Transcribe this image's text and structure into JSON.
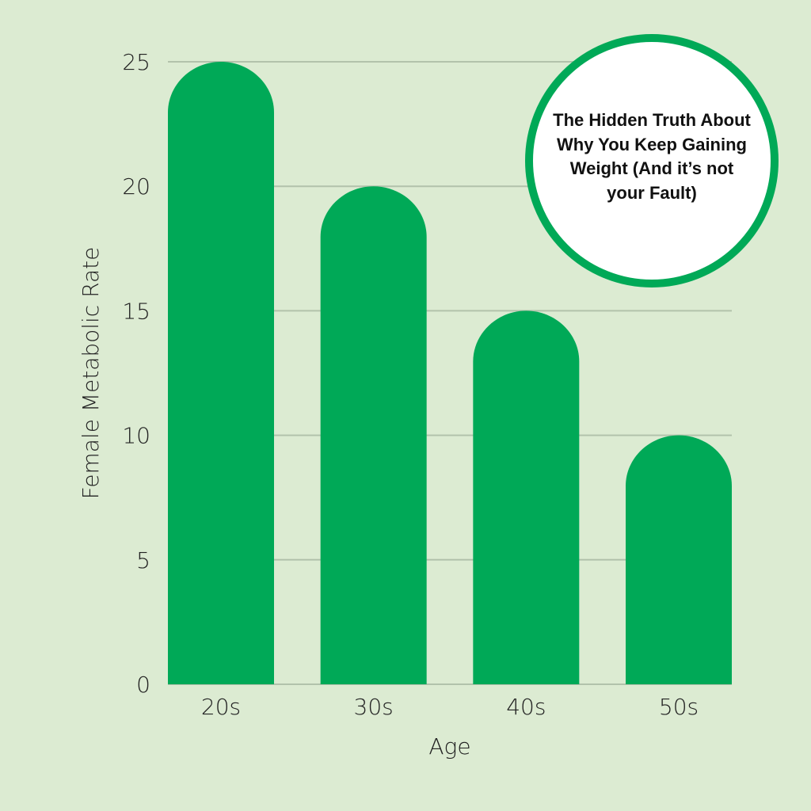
{
  "badge": {
    "text": "The Hidden Truth About Why You Keep Gaining Weight (And it’s not your Fault)"
  },
  "colors": {
    "background": "#dcebd2",
    "bar": "#00a957",
    "grid": "#b2c2ab",
    "badge_border": "#00a957"
  },
  "chart_data": {
    "type": "bar",
    "categories": [
      "20s",
      "30s",
      "40s",
      "50s"
    ],
    "values": [
      25,
      20,
      15,
      10
    ],
    "xlabel": "Age",
    "ylabel": "Female Metabolic Rate",
    "ylim": [
      0,
      25
    ],
    "yticks": [
      0,
      5,
      10,
      15,
      20,
      25
    ],
    "grid": true,
    "bar_shape": "rounded-top"
  }
}
